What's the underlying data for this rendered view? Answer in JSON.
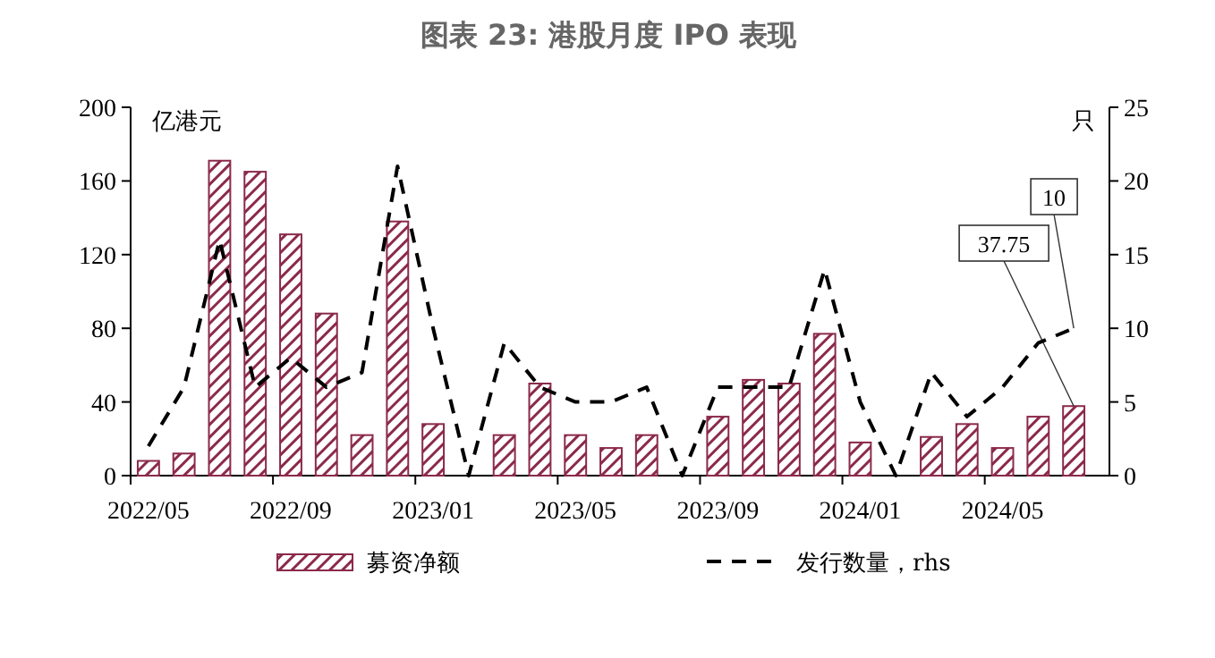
{
  "chart_data": {
    "type": "bar",
    "title": "图表 23: 港股月度 IPO 表现",
    "ylabel": "亿港元",
    "y2label": "只",
    "categories": [
      "2022/05",
      null,
      null,
      null,
      "2022/09",
      null,
      null,
      null,
      "2023/01",
      null,
      null,
      null,
      "2023/05",
      null,
      null,
      null,
      "2023/09",
      null,
      null,
      null,
      "2024/01",
      null,
      null,
      null,
      "2024/05",
      null,
      null
    ],
    "series": [
      {
        "name": "募资净额",
        "color": "#8b2a4a",
        "values": [
          8,
          12,
          171,
          165,
          131,
          88,
          22,
          138,
          28,
          0,
          22,
          50,
          22,
          15,
          22,
          0,
          32,
          52,
          50,
          77,
          18,
          0,
          21,
          28,
          15,
          32,
          37.75
        ],
        "value_labels": [
          null,
          null,
          null,
          null,
          null,
          null,
          null,
          null,
          null,
          null,
          null,
          null,
          null,
          null,
          null,
          null,
          null,
          null,
          null,
          null,
          null,
          null,
          null,
          null,
          null,
          null,
          "37.75"
        ]
      },
      {
        "name": "发行数量，rhs",
        "type": "line",
        "axis": "y2",
        "color": "#000000",
        "line_style": "dashed",
        "values": [
          2,
          6,
          16,
          6,
          8,
          6,
          7,
          21,
          10,
          0,
          9,
          6,
          5,
          5,
          6,
          0,
          6,
          6,
          6,
          14,
          5,
          0,
          7,
          4,
          6,
          9,
          10
        ],
        "value_labels": [
          null,
          null,
          null,
          null,
          null,
          null,
          null,
          null,
          null,
          null,
          null,
          null,
          null,
          null,
          null,
          null,
          null,
          null,
          null,
          null,
          null,
          null,
          null,
          null,
          null,
          null,
          "10"
        ]
      }
    ],
    "ylim": [
      0,
      200
    ],
    "yticks": [
      0,
      40,
      80,
      120,
      160,
      200
    ],
    "y2lim": [
      0,
      25
    ],
    "y2ticks": [
      0,
      5,
      10,
      15,
      20,
      25
    ],
    "legend": "bottom",
    "grid": false
  }
}
